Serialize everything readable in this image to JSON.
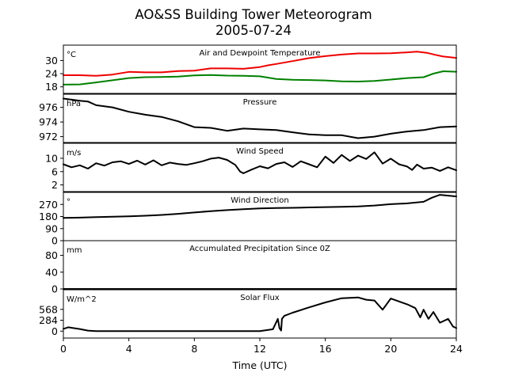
{
  "figure": {
    "title_line1": "AO&SS Building Tower Meteorogram",
    "title_line2": "2005-07-24",
    "xlabel": "Time (UTC)"
  },
  "chart_data": [
    {
      "type": "line",
      "title": "Air and Dewpoint Temperature",
      "unit": "°C",
      "ylim": [
        15,
        37
      ],
      "yticks": [
        18,
        24,
        30
      ],
      "xlim": [
        0,
        24
      ],
      "grid": false,
      "series": [
        {
          "color": "#ee0000",
          "x": [
            0,
            1,
            2,
            3,
            4,
            5,
            6,
            7,
            8,
            9,
            10,
            11,
            12,
            12.5,
            13,
            14,
            15,
            16,
            17,
            18,
            19,
            20,
            21,
            21.6,
            22.2,
            22.7,
            23.2,
            24
          ],
          "y": [
            23.3,
            23.3,
            23,
            23.6,
            24.8,
            24.6,
            24.6,
            25.2,
            25.4,
            26.4,
            26.4,
            26.2,
            27,
            27.8,
            28.4,
            29.7,
            31.1,
            32,
            32.7,
            33.2,
            33.2,
            33.3,
            33.7,
            34,
            33.5,
            32.6,
            31.8,
            31.2
          ]
        },
        {
          "color": "#008000",
          "x": [
            0,
            1,
            2,
            3,
            4,
            5,
            6,
            7,
            8,
            9,
            10,
            11,
            12,
            13,
            14,
            15,
            16,
            17,
            18,
            19,
            20,
            21,
            22,
            22.6,
            23.2,
            24
          ],
          "y": [
            19,
            19.1,
            20,
            21,
            22,
            22.4,
            22.5,
            22.7,
            23.2,
            23.4,
            23.1,
            23,
            22.8,
            21.6,
            21.2,
            21.1,
            20.9,
            20.5,
            20.4,
            20.7,
            21.3,
            22,
            22.4,
            24,
            25.1,
            24.9
          ]
        }
      ]
    },
    {
      "type": "line",
      "title": "Pressure",
      "unit": "hPa",
      "ylim": [
        971.2,
        977.8
      ],
      "yticks": [
        972,
        974,
        976
      ],
      "xlim": [
        0,
        24
      ],
      "grid": false,
      "series": [
        {
          "color": "#000000",
          "x": [
            0,
            1,
            1.5,
            2,
            3,
            4,
            5,
            6,
            7,
            8,
            9,
            10,
            11,
            12,
            13,
            14,
            15,
            16,
            17,
            18,
            19,
            20,
            21,
            22,
            23,
            24
          ],
          "y": [
            977.2,
            976.9,
            976.8,
            976.3,
            976,
            975.4,
            975,
            974.7,
            974.1,
            973.3,
            973.2,
            972.8,
            973.1,
            973,
            972.9,
            972.6,
            972.3,
            972.2,
            972.2,
            971.8,
            972,
            972.4,
            972.7,
            972.9,
            973.3,
            973.4
          ]
        }
      ]
    },
    {
      "type": "line",
      "title": "Wind Speed",
      "unit": "m/s",
      "ylim": [
        0,
        14.5
      ],
      "yticks": [
        2,
        6,
        10
      ],
      "xlim": [
        0,
        24
      ],
      "grid": false,
      "series": [
        {
          "color": "#000000",
          "x": [
            0,
            0.5,
            1,
            1.5,
            2,
            2.5,
            3,
            3.5,
            4,
            4.5,
            5,
            5.5,
            6,
            6.5,
            7,
            7.5,
            8,
            8.5,
            9,
            9.5,
            10,
            10.5,
            10.8,
            11,
            11.5,
            12,
            12.5,
            13,
            13.5,
            14,
            14.5,
            15,
            15.5,
            16,
            16.5,
            17,
            17.5,
            18,
            18.5,
            19,
            19.5,
            20,
            20.5,
            21,
            21.3,
            21.6,
            22,
            22.5,
            23,
            23.5,
            24
          ],
          "y": [
            8.2,
            7.3,
            7.9,
            6.9,
            8.5,
            7.8,
            8.8,
            9.1,
            8.3,
            9.3,
            8.1,
            9.4,
            7.9,
            8.7,
            8.3,
            8,
            8.5,
            9.1,
            9.9,
            10.2,
            9.5,
            8,
            6,
            5.5,
            6.6,
            7.6,
            7,
            8.3,
            8.8,
            7.4,
            9.1,
            8.2,
            7.3,
            10.5,
            8.6,
            11,
            9.2,
            10.8,
            9.8,
            11.8,
            8.4,
            9.9,
            8.2,
            7.5,
            6.5,
            8.1,
            6.9,
            7.2,
            6.2,
            7.3,
            6.4
          ]
        }
      ]
    },
    {
      "type": "line",
      "title": "Wind Direction",
      "unit": "°",
      "ylim": [
        0,
        360
      ],
      "yticks": [
        0,
        90,
        180,
        270
      ],
      "xlim": [
        0,
        24
      ],
      "grid": false,
      "series": [
        {
          "color": "#000000",
          "x": [
            0,
            1,
            2,
            3,
            4,
            5,
            6,
            7,
            8,
            9,
            10,
            11,
            12,
            13,
            14,
            15,
            16,
            17,
            18,
            19,
            20,
            21,
            22,
            22.5,
            23,
            24
          ],
          "y": [
            170,
            172,
            175,
            178,
            182,
            186,
            192,
            200,
            210,
            220,
            228,
            235,
            240,
            243,
            245,
            248,
            250,
            252,
            255,
            262,
            272,
            278,
            290,
            320,
            342,
            330
          ]
        }
      ]
    },
    {
      "type": "line",
      "title": "Accumulated Precipitation Since 0Z",
      "unit": "mm",
      "ylim": [
        0,
        115
      ],
      "yticks": [
        0,
        40,
        80
      ],
      "xlim": [
        0,
        24
      ],
      "grid": false,
      "series": [
        {
          "color": "#000000",
          "x": [
            0,
            24
          ],
          "y": [
            0,
            0
          ]
        }
      ]
    },
    {
      "type": "line",
      "title": "Solar Flux",
      "unit": "W/m^2",
      "ylim": [
        -180,
        1080
      ],
      "yticks": [
        0,
        284,
        568
      ],
      "xlim": [
        0,
        24
      ],
      "grid": false,
      "series": [
        {
          "color": "#000000",
          "x": [
            0,
            0.3,
            0.6,
            1,
            1.5,
            2,
            4,
            6,
            8,
            10,
            11,
            12,
            12.8,
            13.1,
            13.2,
            13.3,
            13.35,
            13.5,
            14,
            15,
            16,
            17,
            18,
            18.5,
            19,
            19.5,
            20,
            21,
            21.5,
            21.8,
            22,
            22.3,
            22.6,
            23,
            23.5,
            23.8,
            24
          ],
          "y": [
            60,
            100,
            80,
            55,
            15,
            0,
            0,
            0,
            0,
            0,
            0,
            0,
            50,
            320,
            80,
            15,
            320,
            400,
            480,
            620,
            750,
            860,
            880,
            820,
            800,
            560,
            850,
            700,
            600,
            360,
            560,
            320,
            500,
            220,
            320,
            120,
            80
          ]
        }
      ]
    }
  ],
  "x_axis": {
    "ticks": [
      "0",
      "4",
      "8",
      "12",
      "16",
      "20",
      "24"
    ]
  }
}
